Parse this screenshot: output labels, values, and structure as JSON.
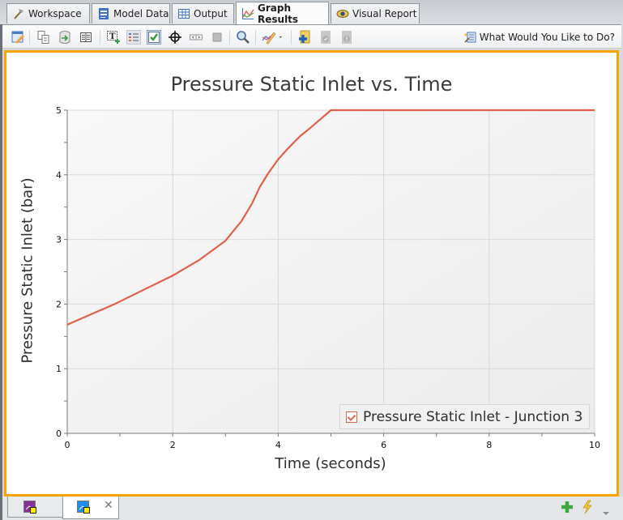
{
  "tabs": [
    {
      "label": "Workspace",
      "icon": "hammer-icon",
      "active": false
    },
    {
      "label": "Model Data",
      "icon": "model-data-icon",
      "active": false
    },
    {
      "label": "Output",
      "icon": "table-icon",
      "active": false
    },
    {
      "label": "Graph Results",
      "icon": "graph-icon",
      "active": true
    },
    {
      "label": "Visual Report",
      "icon": "eye-icon",
      "active": false
    }
  ],
  "toolbar": {
    "buttons": [
      "edit-graph-parameters-icon",
      "copy-icon",
      "export-data-icon",
      "show-data-table-icon",
      "add-text-icon",
      "legend-icon",
      "checkbox-icon",
      "crosshair-icon",
      "toggle-slider-icon",
      "stop-icon",
      "zoom-icon",
      "format-graph-icon",
      "add-favorite-icon",
      "check-disabled-icon",
      "info-disabled-icon"
    ],
    "help_label": "What Would You Like to Do?"
  },
  "chart_data": {
    "type": "line",
    "title": "Pressure Static Inlet vs. Time",
    "xlabel": "Time (seconds)",
    "ylabel": "Pressure Static Inlet (bar)",
    "xlim": [
      0,
      10
    ],
    "ylim": [
      0,
      5
    ],
    "xticks": [
      0,
      2,
      4,
      6,
      8,
      10
    ],
    "yticks": [
      0,
      1,
      2,
      3,
      4,
      5
    ],
    "grid": true,
    "legend_position": "lower right",
    "series": [
      {
        "name": "Pressure Static Inlet - Junction 3",
        "color": "#e0604a",
        "x": [
          0,
          0.5,
          0.9,
          1.0,
          1.5,
          2.0,
          2.5,
          3.0,
          3.3,
          3.5,
          3.65,
          3.8,
          4.0,
          4.2,
          4.42,
          4.6,
          4.8,
          5.0,
          6,
          7,
          8,
          9,
          10
        ],
        "y": [
          1.68,
          1.86,
          2.0,
          2.04,
          2.24,
          2.44,
          2.68,
          2.98,
          3.28,
          3.55,
          3.81,
          4.01,
          4.24,
          4.42,
          4.6,
          4.72,
          4.86,
          5.0,
          5.0,
          5.0,
          5.0,
          5.0,
          5.0
        ]
      }
    ]
  },
  "bottom": {
    "tabs": [
      {
        "icon": "purple-graph-doc-icon",
        "active": false
      },
      {
        "icon": "blue-graph-doc-icon",
        "active": true,
        "close": "✕"
      }
    ],
    "icons": [
      "add-icon",
      "lightning-icon",
      "dropdown-icon"
    ]
  }
}
